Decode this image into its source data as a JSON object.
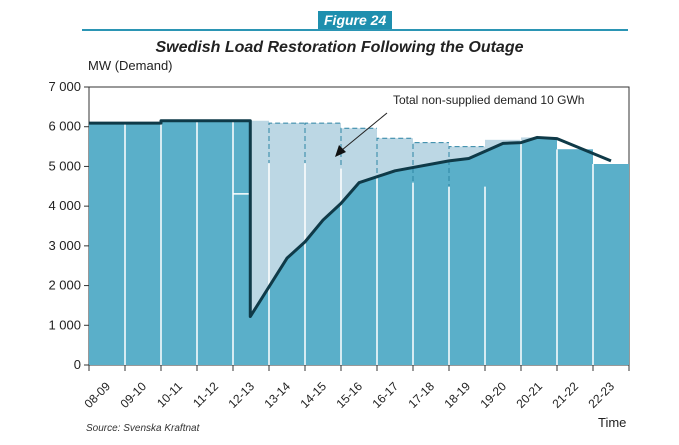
{
  "figure_label": "Figure 24",
  "source": "Source: Svenska Kraftnat",
  "colors": {
    "bar": "#5aafc9",
    "unsupplied": "#bcd7e4",
    "line": "#0f3a48",
    "accent": "#1e8fae"
  },
  "chart_data": {
    "type": "bar",
    "title": "Swedish Load Restoration Following the Outage",
    "ylabel": "MW (Demand)",
    "xlabel": "Time",
    "ylim": [
      0,
      7000
    ],
    "yticks": [
      "0",
      "1 000",
      "2 000",
      "3 000",
      "4 000",
      "5 000",
      "6 000",
      "7 000"
    ],
    "categories": [
      "08-09",
      "09-10",
      "10-11",
      "11-12",
      "12-13",
      "13-14",
      "14-15",
      "15-16",
      "16-17",
      "17-18",
      "18-19",
      "19-20",
      "20-21",
      "21-22",
      "22-23"
    ],
    "series": [
      {
        "values": [
          6080,
          6080,
          6150,
          6150,
          6150,
          6090,
          6090,
          5960,
          5710,
          5600,
          5500,
          5670,
          5730,
          5430,
          5060
        ]
      },
      {
        "values_12_13_marker": 4310
      }
    ],
    "actual_load_line": [
      [
        0,
        6090
      ],
      [
        2,
        6090
      ],
      [
        2,
        6150
      ],
      [
        4.48,
        6150
      ],
      [
        4.48,
        1220
      ],
      [
        5.5,
        2690
      ],
      [
        6,
        3100
      ],
      [
        6.5,
        3650
      ],
      [
        7,
        4070
      ],
      [
        7.5,
        4590
      ],
      [
        8.5,
        4890
      ],
      [
        10,
        5140
      ],
      [
        10.55,
        5200
      ],
      [
        11.5,
        5580
      ],
      [
        12,
        5600
      ],
      [
        12.45,
        5730
      ],
      [
        13,
        5700
      ],
      [
        14.5,
        5140
      ]
    ],
    "annotation": "Total non-supplied demand 10 GWh",
    "grid": false
  }
}
